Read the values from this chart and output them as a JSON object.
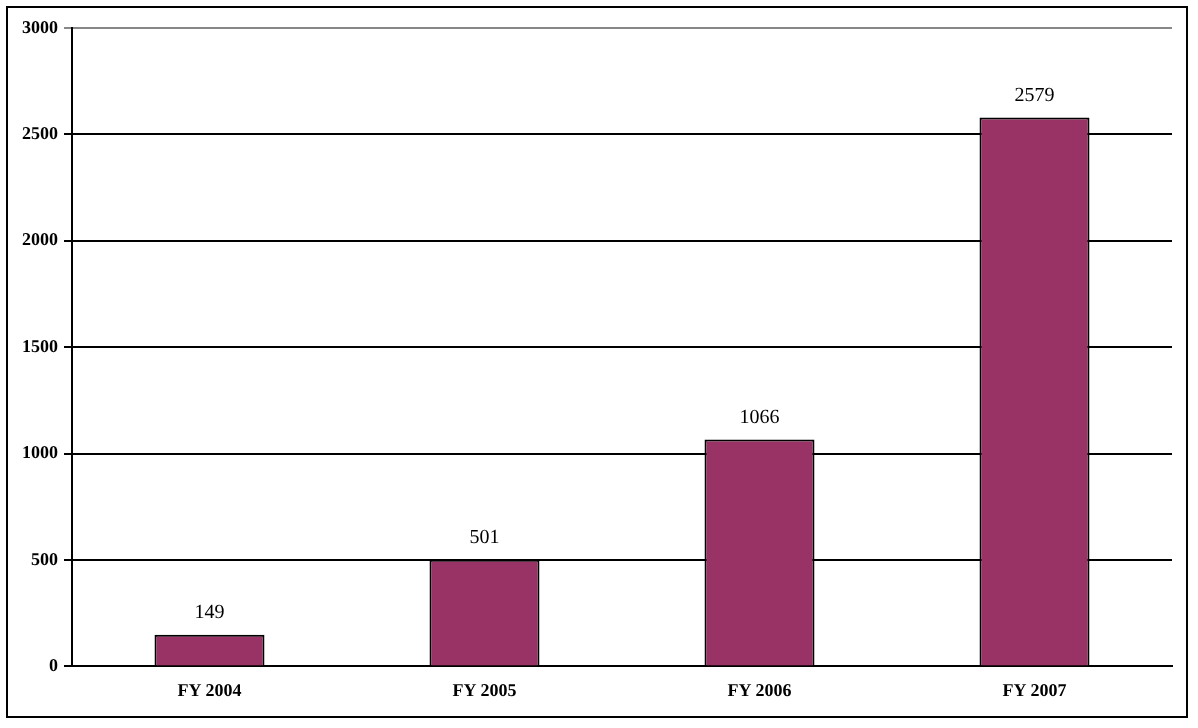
{
  "chart_data": {
    "type": "bar",
    "categories": [
      "FY 2004",
      "FY 2005",
      "FY 2006",
      "FY 2007"
    ],
    "values": [
      149,
      501,
      1066,
      2579
    ],
    "color": "#993366",
    "ylim": [
      0,
      3000
    ],
    "yticks": [
      0,
      500,
      1000,
      1500,
      2000,
      2500,
      3000
    ],
    "grid": "y",
    "data_labels": true,
    "legend": false
  }
}
